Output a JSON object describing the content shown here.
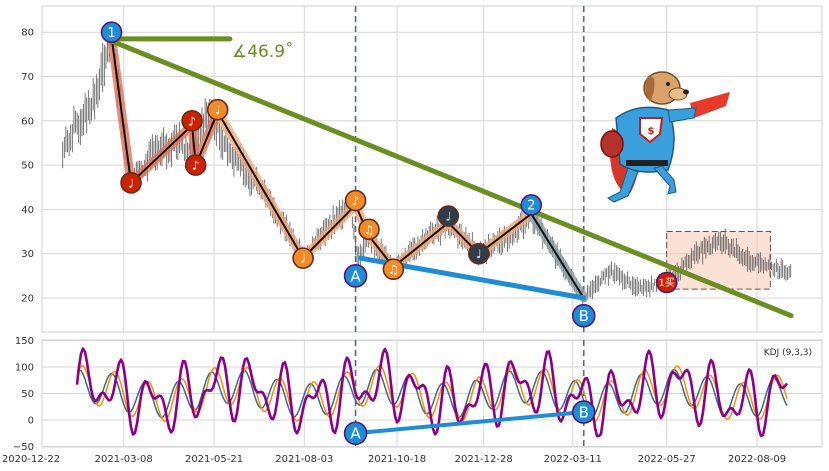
{
  "chart_data": [
    {
      "type": "candlestick",
      "title": "",
      "xlabel": "",
      "ylabel": "",
      "ylim": [
        14,
        86
      ],
      "ytick_values": [
        20,
        30,
        40,
        50,
        60,
        70,
        80
      ],
      "ytick_labels": [
        "20",
        "30",
        "40",
        "50",
        "60",
        "70",
        "80"
      ],
      "price_path": [
        {
          "x": "2021-01-17",
          "y": 53
        },
        {
          "x": "2021-01-31",
          "y": 60
        },
        {
          "x": "2021-02-15",
          "y": 67
        },
        {
          "x": "2021-02-26",
          "y": 79
        },
        {
          "x": "2021-03-14",
          "y": 46
        },
        {
          "x": "2021-04-01",
          "y": 52
        },
        {
          "x": "2021-04-20",
          "y": 56
        },
        {
          "x": "2021-05-02",
          "y": 53
        },
        {
          "x": "2021-05-17",
          "y": 62
        },
        {
          "x": "2021-06-05",
          "y": 52
        },
        {
          "x": "2021-06-25",
          "y": 46
        },
        {
          "x": "2021-07-10",
          "y": 40
        },
        {
          "x": "2021-08-02",
          "y": 29
        },
        {
          "x": "2021-08-22",
          "y": 36
        },
        {
          "x": "2021-09-10",
          "y": 41
        },
        {
          "x": "2021-09-15",
          "y": 29
        },
        {
          "x": "2021-09-25",
          "y": 34
        },
        {
          "x": "2021-10-15",
          "y": 27
        },
        {
          "x": "2021-11-05",
          "y": 32
        },
        {
          "x": "2021-11-29",
          "y": 37
        },
        {
          "x": "2021-12-24",
          "y": 30
        },
        {
          "x": "2022-01-20",
          "y": 34
        },
        {
          "x": "2022-02-05",
          "y": 39
        },
        {
          "x": "2022-02-25",
          "y": 30
        },
        {
          "x": "2022-03-20",
          "y": 20
        },
        {
          "x": "2022-04-10",
          "y": 26
        },
        {
          "x": "2022-05-05",
          "y": 22
        },
        {
          "x": "2022-05-27",
          "y": 24
        },
        {
          "x": "2022-06-20",
          "y": 30
        },
        {
          "x": "2022-07-10",
          "y": 33
        },
        {
          "x": "2022-08-05",
          "y": 28
        },
        {
          "x": "2022-09-06",
          "y": 26
        }
      ],
      "wave_points": [
        {
          "x": "2021-02-26",
          "y": 79
        },
        {
          "x": "2021-03-14",
          "y": 46
        },
        {
          "x": "2021-05-03",
          "y": 59
        },
        {
          "x": "2021-05-06",
          "y": 50
        },
        {
          "x": "2021-05-24",
          "y": 62
        },
        {
          "x": "2021-08-02",
          "y": 29
        },
        {
          "x": "2021-09-14",
          "y": 41
        },
        {
          "x": "2021-09-25",
          "y": 34
        },
        {
          "x": "2021-10-15",
          "y": 27
        },
        {
          "x": "2021-11-29",
          "y": 37
        },
        {
          "x": "2021-12-24",
          "y": 30
        },
        {
          "x": "2022-02-05",
          "y": 39
        },
        {
          "x": "2022-03-20",
          "y": 20
        }
      ],
      "trendlines": [
        {
          "name": "downtrend",
          "color": "#6b8e23",
          "from": {
            "x": "2021-02-26",
            "y": 78
          },
          "to": {
            "x": "2022-09-06",
            "y": 16
          }
        },
        {
          "name": "horizontal",
          "color": "#6b8e23",
          "from": {
            "x": "2021-02-26",
            "y": 78.5
          },
          "to": {
            "x": "2021-06-03",
            "y": 78.5
          }
        },
        {
          "name": "divergence",
          "color": "#1f8dd6",
          "from": {
            "x": "2021-09-18",
            "y": 29
          },
          "to": {
            "x": "2022-03-20",
            "y": 20
          }
        }
      ],
      "angle_label": "∡46.9˚",
      "vlines": [
        "2021-09-14",
        "2022-03-20"
      ],
      "highlight_box": {
        "x0": "2022-05-27",
        "x1": "2022-08-20",
        "y0": 22,
        "y1": 35
      },
      "markers": [
        {
          "type": "circle",
          "label": "1",
          "x": "2021-02-26",
          "y": 80,
          "color": "#1f8dd6"
        },
        {
          "type": "circle",
          "label": "2",
          "x": "2022-02-05",
          "y": 41,
          "color": "#1f8dd6"
        },
        {
          "type": "circle",
          "label": "A",
          "x": "2021-09-14",
          "y": 25,
          "color": "#1f8dd6"
        },
        {
          "type": "circle",
          "label": "B",
          "x": "2022-03-20",
          "y": 16,
          "color": "#1f8dd6"
        },
        {
          "type": "circle",
          "label": "1买",
          "x": "2022-05-27",
          "y": 23.5,
          "color": "#cc2200"
        },
        {
          "type": "note",
          "label": "♩",
          "x": "2021-03-14",
          "y": 46,
          "color": "#cc2200"
        },
        {
          "type": "note",
          "label": "♪",
          "x": "2021-05-03",
          "y": 60,
          "color": "#cc2200"
        },
        {
          "type": "note",
          "label": "♪",
          "x": "2021-05-06",
          "y": 50,
          "color": "#cc2200"
        },
        {
          "type": "note",
          "label": "♩",
          "x": "2021-05-24",
          "y": 62.5,
          "color": "#f28c28"
        },
        {
          "type": "note",
          "label": "♩",
          "x": "2021-08-02",
          "y": 29,
          "color": "#f28c28"
        },
        {
          "type": "note",
          "label": "♪",
          "x": "2021-09-14",
          "y": 42,
          "color": "#f28c28"
        },
        {
          "type": "note",
          "label": "♫",
          "x": "2021-09-25",
          "y": 35.5,
          "color": "#f28c28"
        },
        {
          "type": "note",
          "label": "♫",
          "x": "2021-10-15",
          "y": 26.5,
          "color": "#f28c28"
        },
        {
          "type": "note",
          "label": "♩",
          "x": "2021-11-29",
          "y": 38.5,
          "color": "#2f3d4a"
        },
        {
          "type": "note",
          "label": "♩",
          "x": "2021-12-24",
          "y": 30,
          "color": "#2f3d4a"
        }
      ]
    },
    {
      "type": "line",
      "title": "KDJ (9,3,3)",
      "xlabel": "",
      "ylabel": "",
      "ylim": [
        -50,
        150
      ],
      "ytick_values": [
        -50,
        0,
        50,
        100,
        150
      ],
      "ytick_labels": [
        "−50",
        "0",
        "50",
        "100",
        "150"
      ],
      "series": [
        {
          "name": "J",
          "color": "#8b008b"
        },
        {
          "name": "D",
          "color": "#ff8c00"
        },
        {
          "name": "K",
          "color": "#3a6b8a"
        }
      ],
      "divergence_line": {
        "from": {
          "x": "2021-09-14",
          "y": -25
        },
        "to": {
          "x": "2022-03-20",
          "y": 15
        },
        "color": "#1f8dd6"
      },
      "markers": [
        {
          "label": "A",
          "x": "2021-09-14",
          "y": -25,
          "color": "#1f8dd6"
        },
        {
          "label": "B",
          "x": "2022-03-20",
          "y": 15,
          "color": "#1f8dd6"
        }
      ]
    }
  ],
  "x_axis": {
    "tick_dates": [
      "2020-12-22",
      "2021-03-08",
      "2021-05-21",
      "2021-08-03",
      "2021-10-18",
      "2021-12-28",
      "2022-03-11",
      "2022-05-27",
      "2022-08-09"
    ],
    "tick_labels": [
      "2020-12-22",
      "2021-03-08",
      "2021-05-21",
      "2021-08-03",
      "2021-10-18",
      "2021-12-28",
      "2022-03-11",
      "2022-05-27",
      "2022-08-09"
    ]
  }
}
